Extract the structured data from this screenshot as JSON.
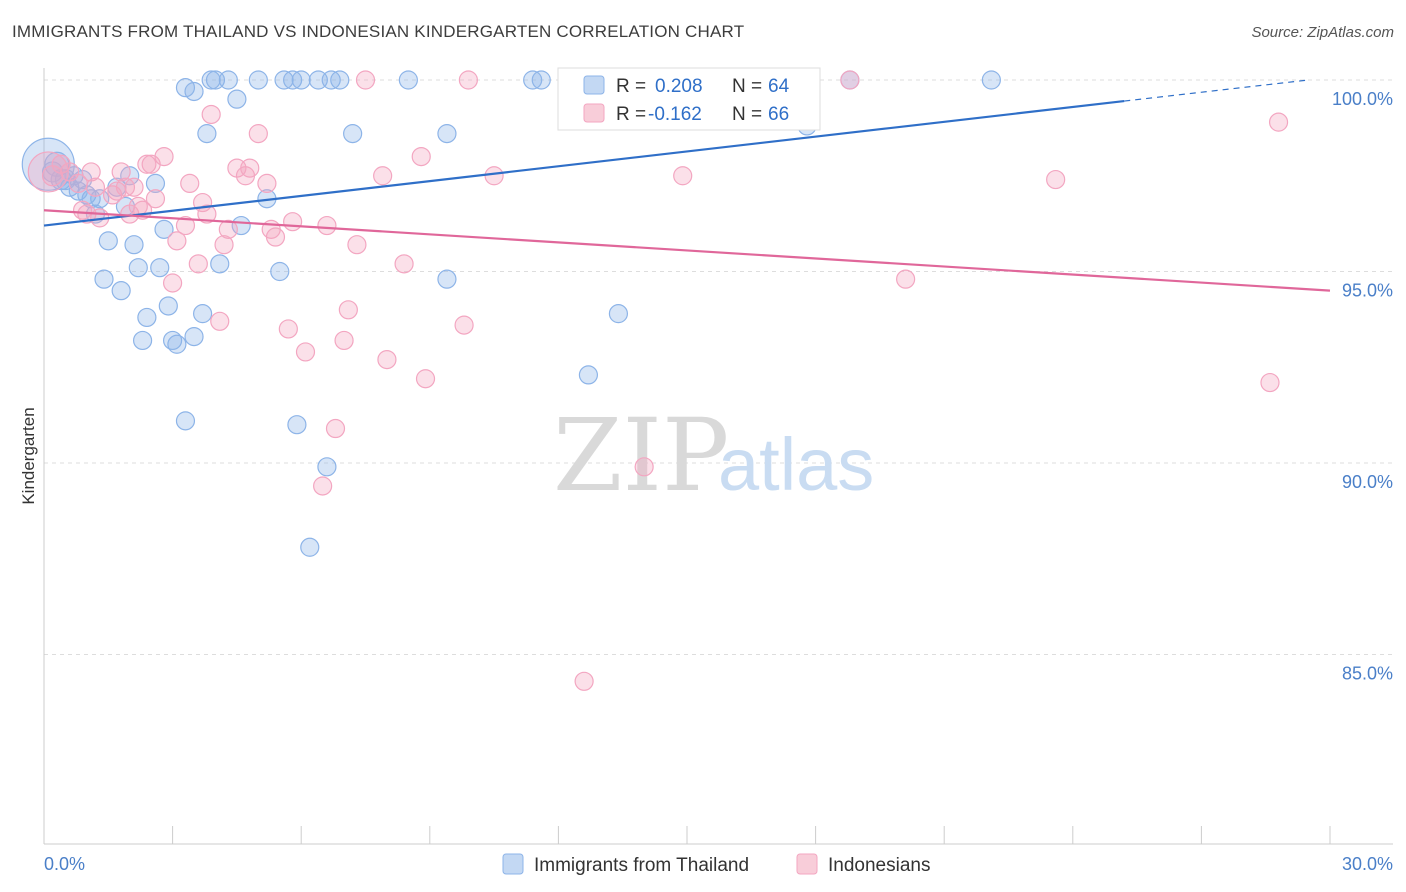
{
  "chart_data": {
    "type": "scatter",
    "title": "IMMIGRANTS FROM THAILAND VS INDONESIAN KINDERGARTEN CORRELATION CHART",
    "source": "Source: ZipAtlas.com",
    "xlabel": "",
    "ylabel": "Kindergarten",
    "xlim": [
      0,
      30
    ],
    "ylim": [
      80.5,
      100.8
    ],
    "x_tick_labels": [
      "0.0%",
      "30.0%"
    ],
    "y_ticks": [
      85,
      90,
      95,
      100
    ],
    "y_tick_labels": [
      "85.0%",
      "90.0%",
      "95.0%",
      "100.0%"
    ],
    "grid": true,
    "watermark": {
      "zip": "ZIP",
      "atlas": "atlas"
    },
    "legend": [
      {
        "r_label": "R = ",
        "r_value": "0.208",
        "n_label": "N = ",
        "n_value": "64"
      },
      {
        "r_label": "R = ",
        "r_value": "-0.162",
        "n_label": "N = ",
        "n_value": "66"
      }
    ],
    "series": [
      {
        "name": "Immigrants from Thailand",
        "color": "#8db4e8",
        "line_color": "#2f6fc8",
        "trend": {
          "x0": 0,
          "y0": 96.2,
          "x1": 25.2,
          "y1": 99.45,
          "dash_to_x": 29.5,
          "dash_to_y": 100.0
        },
        "points": [
          [
            0.1,
            97.8,
            26
          ],
          [
            0.3,
            97.8,
            12
          ],
          [
            0.4,
            97.4,
            10
          ],
          [
            0.5,
            97.4,
            10
          ],
          [
            0.6,
            97.2,
            9
          ],
          [
            0.8,
            97.1,
            9
          ],
          [
            0.9,
            97.4,
            9
          ],
          [
            1.0,
            97.0,
            9
          ],
          [
            1.2,
            96.5,
            9
          ],
          [
            1.3,
            96.9,
            9
          ],
          [
            1.5,
            95.8,
            9
          ],
          [
            1.4,
            94.8,
            9
          ],
          [
            1.7,
            97.2,
            9
          ],
          [
            1.9,
            96.7,
            9
          ],
          [
            2.0,
            97.5,
            9
          ],
          [
            2.1,
            95.7,
            9
          ],
          [
            2.2,
            95.1,
            9
          ],
          [
            2.4,
            93.8,
            9
          ],
          [
            2.3,
            93.2,
            9
          ],
          [
            2.6,
            97.3,
            9
          ],
          [
            2.7,
            95.1,
            9
          ],
          [
            2.8,
            96.1,
            9
          ],
          [
            2.9,
            94.1,
            9
          ],
          [
            3.0,
            93.2,
            9
          ],
          [
            3.1,
            93.1,
            9
          ],
          [
            3.3,
            99.8,
            9
          ],
          [
            3.5,
            99.7,
            9
          ],
          [
            3.5,
            93.3,
            9
          ],
          [
            3.8,
            98.6,
            9
          ],
          [
            3.7,
            93.9,
            9
          ],
          [
            3.9,
            100.0,
            9
          ],
          [
            4.0,
            100.0,
            9
          ],
          [
            4.1,
            95.2,
            9
          ],
          [
            4.3,
            100.0,
            9
          ],
          [
            4.5,
            99.5,
            9
          ],
          [
            4.6,
            96.2,
            9
          ],
          [
            3.3,
            91.1,
            9
          ],
          [
            1.8,
            94.5,
            9
          ],
          [
            5.0,
            100.0,
            9
          ],
          [
            5.2,
            96.9,
            9
          ],
          [
            5.5,
            95.0,
            9
          ],
          [
            5.6,
            100.0,
            9
          ],
          [
            5.8,
            100.0,
            9
          ],
          [
            6.0,
            100.0,
            9
          ],
          [
            5.9,
            91.0,
            9
          ],
          [
            6.2,
            87.8,
            9
          ],
          [
            6.4,
            100.0,
            9
          ],
          [
            6.7,
            100.0,
            9
          ],
          [
            6.6,
            89.9,
            9
          ],
          [
            6.9,
            100.0,
            9
          ],
          [
            7.2,
            98.6,
            9
          ],
          [
            8.5,
            100.0,
            9
          ],
          [
            9.4,
            98.6,
            9
          ],
          [
            9.4,
            94.8,
            9
          ],
          [
            11.4,
            100.0,
            9
          ],
          [
            11.6,
            100.0,
            9
          ],
          [
            12.7,
            92.3,
            9
          ],
          [
            13.4,
            93.9,
            9
          ],
          [
            17.8,
            98.8,
            9
          ],
          [
            18.8,
            100.0,
            9
          ],
          [
            22.1,
            100.0,
            9
          ],
          [
            0.2,
            97.6,
            10
          ],
          [
            0.7,
            97.5,
            9
          ],
          [
            1.1,
            96.9,
            9
          ]
        ]
      },
      {
        "name": "Indonesians",
        "color": "#f3a6c1",
        "line_color": "#e0679a",
        "trend": {
          "x0": 0,
          "y0": 96.6,
          "x1": 30,
          "y1": 94.5
        },
        "points": [
          [
            0.1,
            97.6,
            20
          ],
          [
            0.2,
            97.5,
            10
          ],
          [
            0.4,
            97.8,
            9
          ],
          [
            0.6,
            97.6,
            9
          ],
          [
            0.8,
            97.3,
            9
          ],
          [
            0.9,
            96.6,
            9
          ],
          [
            1.1,
            97.6,
            9
          ],
          [
            1.2,
            97.2,
            9
          ],
          [
            1.3,
            96.4,
            9
          ],
          [
            1.6,
            97.0,
            9
          ],
          [
            1.7,
            97.1,
            9
          ],
          [
            1.8,
            97.6,
            9
          ],
          [
            1.9,
            97.2,
            9
          ],
          [
            2.0,
            96.5,
            9
          ],
          [
            2.1,
            97.2,
            9
          ],
          [
            2.3,
            96.6,
            9
          ],
          [
            2.4,
            97.8,
            9
          ],
          [
            2.5,
            97.8,
            9
          ],
          [
            2.6,
            96.9,
            9
          ],
          [
            2.8,
            98.0,
            9
          ],
          [
            3.0,
            94.7,
            9
          ],
          [
            3.1,
            95.8,
            9
          ],
          [
            3.3,
            96.2,
            9
          ],
          [
            3.4,
            97.3,
            9
          ],
          [
            3.6,
            95.2,
            9
          ],
          [
            3.7,
            96.8,
            9
          ],
          [
            3.8,
            96.5,
            9
          ],
          [
            3.9,
            99.1,
            9
          ],
          [
            4.1,
            93.7,
            9
          ],
          [
            4.2,
            95.7,
            9
          ],
          [
            4.3,
            96.1,
            9
          ],
          [
            4.5,
            97.7,
            9
          ],
          [
            4.7,
            97.5,
            9
          ],
          [
            4.8,
            97.7,
            9
          ],
          [
            5.0,
            98.6,
            9
          ],
          [
            5.2,
            97.3,
            9
          ],
          [
            5.3,
            96.1,
            9
          ],
          [
            5.4,
            95.9,
            9
          ],
          [
            5.7,
            93.5,
            9
          ],
          [
            5.8,
            96.3,
            9
          ],
          [
            6.1,
            92.9,
            9
          ],
          [
            6.5,
            89.4,
            9
          ],
          [
            6.6,
            96.2,
            9
          ],
          [
            6.8,
            90.9,
            9
          ],
          [
            7.0,
            93.2,
            9
          ],
          [
            7.1,
            94.0,
            9
          ],
          [
            7.3,
            95.7,
            9
          ],
          [
            7.5,
            100.0,
            9
          ],
          [
            7.9,
            97.5,
            9
          ],
          [
            8.0,
            92.7,
            9
          ],
          [
            8.4,
            95.2,
            9
          ],
          [
            8.8,
            98.0,
            9
          ],
          [
            8.9,
            92.2,
            9
          ],
          [
            9.8,
            93.6,
            9
          ],
          [
            9.9,
            100.0,
            9
          ],
          [
            10.5,
            97.5,
            9
          ],
          [
            12.6,
            84.3,
            9
          ],
          [
            14.0,
            89.9,
            9
          ],
          [
            14.9,
            97.5,
            9
          ],
          [
            18.8,
            100.0,
            9
          ],
          [
            20.1,
            94.8,
            9
          ],
          [
            23.6,
            97.4,
            9
          ],
          [
            28.6,
            92.1,
            9
          ],
          [
            28.8,
            98.9,
            9
          ],
          [
            1.0,
            96.5,
            9
          ],
          [
            2.2,
            96.7,
            9
          ]
        ]
      }
    ]
  }
}
